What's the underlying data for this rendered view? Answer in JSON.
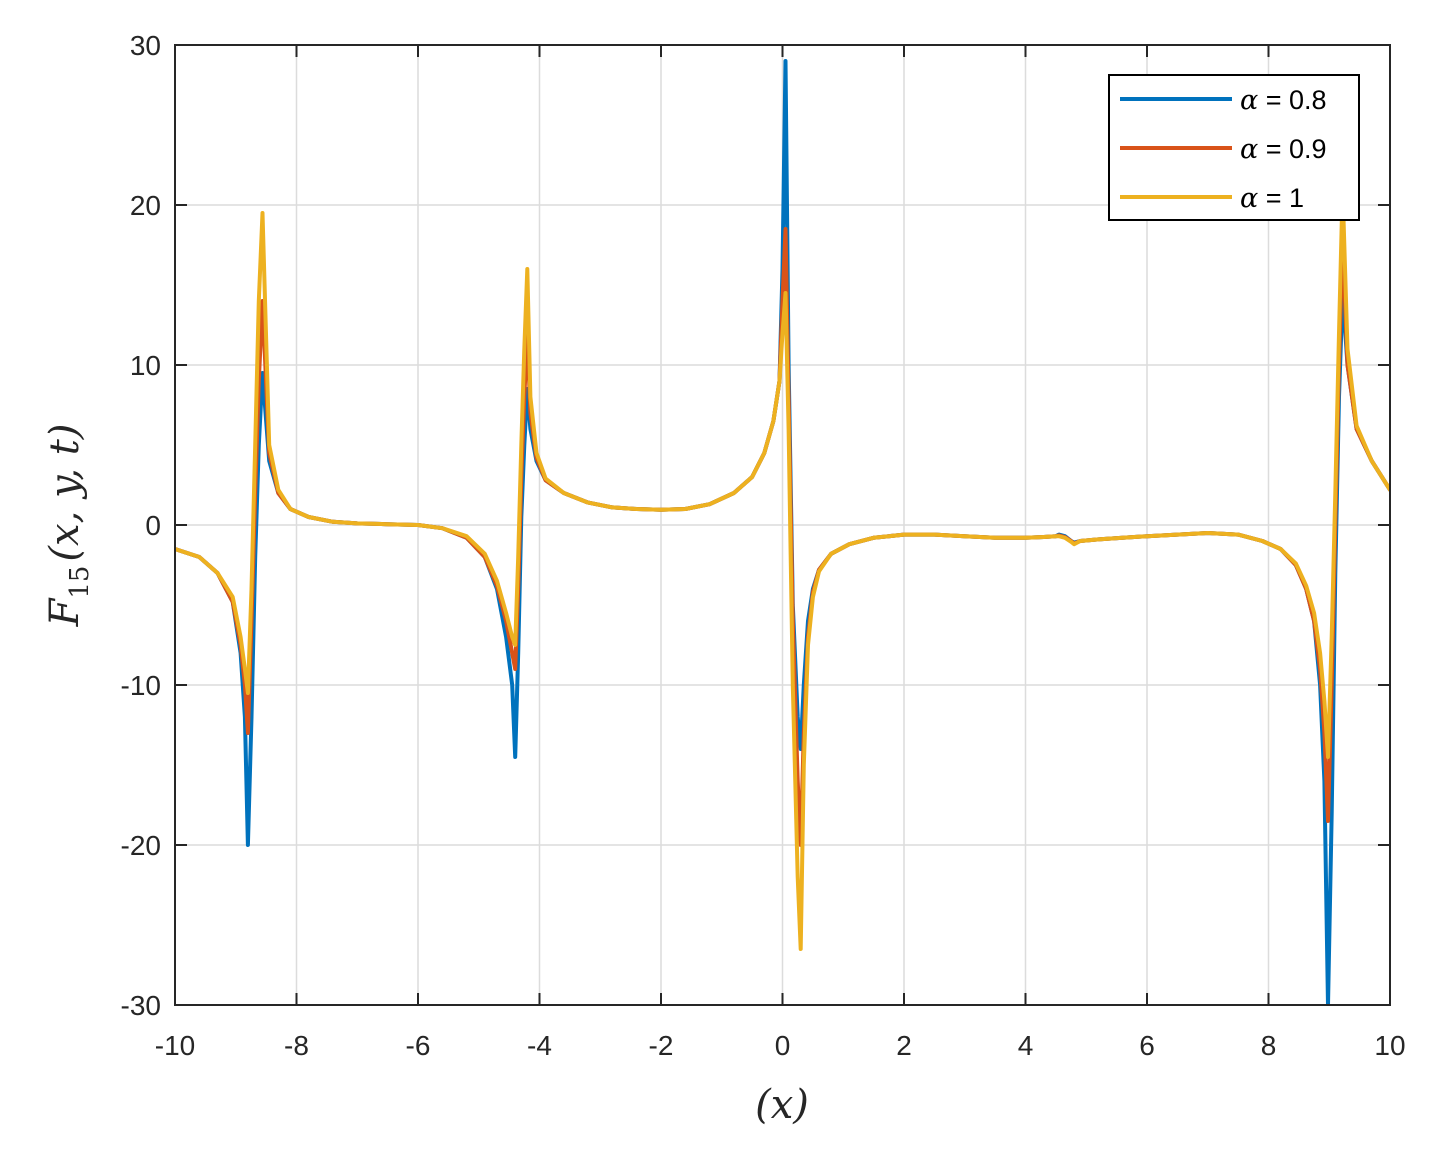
{
  "chart_data": {
    "type": "line",
    "title": "",
    "xlabel": "(x)",
    "ylabel_parts": {
      "main": "F",
      "sub": "15",
      "args": "(x, y, t)"
    },
    "xlim": [
      -10,
      10
    ],
    "ylim": [
      -30,
      30
    ],
    "xticks": [
      -10,
      -8,
      -6,
      -4,
      -2,
      0,
      2,
      4,
      6,
      8,
      10
    ],
    "yticks": [
      -30,
      -20,
      -10,
      0,
      10,
      20,
      30
    ],
    "xtick_labels": [
      "-10",
      "-8",
      "-6",
      "-4",
      "-2",
      "0",
      "2",
      "4",
      "6",
      "8",
      "10"
    ],
    "ytick_labels": [
      "-30",
      "-20",
      "-10",
      "0",
      "10",
      "20",
      "30"
    ],
    "grid": true,
    "legend_position": "top-right",
    "series": [
      {
        "name": "α = 0.8",
        "greek": "α",
        "value_text": " = 0.8",
        "color": "#0072BD",
        "x": [
          -10,
          -9.6,
          -9.3,
          -9.05,
          -8.92,
          -8.85,
          -8.8,
          -8.74,
          -8.68,
          -8.62,
          -8.56,
          -8.45,
          -8.3,
          -8.1,
          -7.8,
          -7.4,
          -7.0,
          -6.5,
          -6.0,
          -5.6,
          -5.2,
          -4.9,
          -4.7,
          -4.55,
          -4.45,
          -4.4,
          -4.35,
          -4.3,
          -4.25,
          -4.2,
          -4.15,
          -4.05,
          -3.9,
          -3.6,
          -3.2,
          -2.8,
          -2.4,
          -2.0,
          -1.6,
          -1.2,
          -0.8,
          -0.5,
          -0.3,
          -0.15,
          -0.05,
          0.0,
          0.05,
          0.1,
          0.17,
          0.25,
          0.3,
          0.35,
          0.42,
          0.5,
          0.6,
          0.8,
          1.1,
          1.5,
          2.0,
          2.5,
          3.0,
          3.5,
          4.0,
          4.3,
          4.5,
          4.55,
          4.65,
          4.75,
          4.8,
          4.9,
          5.2,
          5.6,
          6.0,
          6.5,
          7.0,
          7.5,
          7.9,
          8.2,
          8.45,
          8.62,
          8.75,
          8.85,
          8.92,
          8.98,
          9.04,
          9.1,
          9.16,
          9.22,
          9.3,
          9.45,
          9.7,
          10
        ],
        "y": [
          -1.5,
          -2.0,
          -3.0,
          -4.8,
          -8.0,
          -12.0,
          -20.0,
          -12.0,
          -2.0,
          5.0,
          9.5,
          4.0,
          2.0,
          1.0,
          0.5,
          0.2,
          0.1,
          0.05,
          0.0,
          -0.2,
          -0.8,
          -2.0,
          -4.0,
          -7.0,
          -10.0,
          -14.5,
          -8.0,
          0.5,
          5.0,
          8.5,
          6.0,
          4.0,
          2.8,
          2.0,
          1.4,
          1.1,
          1.0,
          0.95,
          1.0,
          1.3,
          2.0,
          3.0,
          4.5,
          6.5,
          9.0,
          16.0,
          29.0,
          10.0,
          -5.0,
          -12.0,
          -14.0,
          -10.0,
          -6.0,
          -4.0,
          -2.8,
          -1.8,
          -1.2,
          -0.8,
          -0.6,
          -0.6,
          -0.7,
          -0.8,
          -0.8,
          -0.75,
          -0.7,
          -0.6,
          -0.7,
          -1.0,
          -1.1,
          -1.0,
          -0.9,
          -0.8,
          -0.7,
          -0.6,
          -0.5,
          -0.6,
          -1.0,
          -1.5,
          -2.5,
          -4.0,
          -6.0,
          -10.0,
          -16.0,
          -30.0,
          -18.0,
          -3.0,
          8.0,
          14.5,
          10.0,
          6.0,
          4.0,
          2.2
        ]
      },
      {
        "name": "α = 0.9",
        "greek": "α",
        "value_text": " = 0.9",
        "color": "#D95319",
        "x": [
          -10,
          -9.6,
          -9.3,
          -9.05,
          -8.92,
          -8.85,
          -8.8,
          -8.74,
          -8.68,
          -8.62,
          -8.56,
          -8.45,
          -8.3,
          -8.1,
          -7.8,
          -7.4,
          -7.0,
          -6.5,
          -6.0,
          -5.6,
          -5.2,
          -4.9,
          -4.7,
          -4.55,
          -4.45,
          -4.4,
          -4.35,
          -4.3,
          -4.25,
          -4.2,
          -4.15,
          -4.05,
          -3.9,
          -3.6,
          -3.2,
          -2.8,
          -2.4,
          -2.0,
          -1.6,
          -1.2,
          -0.8,
          -0.5,
          -0.3,
          -0.15,
          -0.05,
          0.0,
          0.05,
          0.1,
          0.17,
          0.25,
          0.3,
          0.35,
          0.42,
          0.5,
          0.6,
          0.8,
          1.1,
          1.5,
          2.0,
          2.5,
          3.0,
          3.5,
          4.0,
          4.3,
          4.5,
          4.55,
          4.65,
          4.75,
          4.8,
          4.9,
          5.2,
          5.6,
          6.0,
          6.5,
          7.0,
          7.5,
          7.9,
          8.2,
          8.45,
          8.62,
          8.75,
          8.85,
          8.92,
          8.98,
          9.04,
          9.1,
          9.16,
          9.22,
          9.3,
          9.45,
          9.7,
          10
        ],
        "y": [
          -1.5,
          -2.0,
          -3.0,
          -4.8,
          -7.5,
          -10.0,
          -13.0,
          -6.0,
          2.0,
          9.0,
          14.0,
          4.5,
          2.0,
          1.0,
          0.5,
          0.2,
          0.1,
          0.05,
          0.0,
          -0.2,
          -0.8,
          -2.0,
          -3.8,
          -6.0,
          -8.0,
          -9.0,
          -4.0,
          3.0,
          8.0,
          12.0,
          7.0,
          4.2,
          2.8,
          2.0,
          1.4,
          1.1,
          1.0,
          0.95,
          1.0,
          1.3,
          2.0,
          3.0,
          4.5,
          6.5,
          9.0,
          14.0,
          18.5,
          8.0,
          -6.0,
          -16.0,
          -20.0,
          -13.0,
          -7.0,
          -4.2,
          -2.8,
          -1.8,
          -1.2,
          -0.8,
          -0.6,
          -0.6,
          -0.7,
          -0.8,
          -0.8,
          -0.75,
          -0.7,
          -0.65,
          -0.75,
          -1.0,
          -1.15,
          -1.0,
          -0.9,
          -0.8,
          -0.7,
          -0.6,
          -0.5,
          -0.6,
          -1.0,
          -1.5,
          -2.5,
          -4.0,
          -6.0,
          -9.0,
          -13.0,
          -18.5,
          -10.0,
          0.0,
          10.0,
          18.0,
          10.0,
          6.0,
          4.0,
          2.2
        ]
      },
      {
        "name": "α = 1",
        "greek": "α",
        "value_text": " = 1",
        "color": "#EDB120",
        "x": [
          -10,
          -9.6,
          -9.3,
          -9.05,
          -8.92,
          -8.85,
          -8.8,
          -8.74,
          -8.68,
          -8.62,
          -8.56,
          -8.45,
          -8.3,
          -8.1,
          -7.8,
          -7.4,
          -7.0,
          -6.5,
          -6.0,
          -5.6,
          -5.2,
          -4.9,
          -4.7,
          -4.55,
          -4.45,
          -4.4,
          -4.35,
          -4.3,
          -4.25,
          -4.2,
          -4.15,
          -4.05,
          -3.9,
          -3.6,
          -3.2,
          -2.8,
          -2.4,
          -2.0,
          -1.6,
          -1.2,
          -0.8,
          -0.5,
          -0.3,
          -0.15,
          -0.05,
          0.0,
          0.05,
          0.1,
          0.17,
          0.25,
          0.3,
          0.35,
          0.42,
          0.5,
          0.6,
          0.8,
          1.1,
          1.5,
          2.0,
          2.5,
          3.0,
          3.5,
          4.0,
          4.3,
          4.5,
          4.55,
          4.65,
          4.75,
          4.8,
          4.9,
          5.2,
          5.6,
          6.0,
          6.5,
          7.0,
          7.5,
          7.9,
          8.2,
          8.45,
          8.62,
          8.75,
          8.85,
          8.92,
          8.98,
          9.04,
          9.1,
          9.16,
          9.22,
          9.3,
          9.45,
          9.7,
          10
        ],
        "y": [
          -1.5,
          -2.0,
          -3.0,
          -4.5,
          -7.0,
          -9.0,
          -10.5,
          -4.0,
          5.0,
          14.0,
          19.5,
          5.0,
          2.2,
          1.0,
          0.5,
          0.2,
          0.1,
          0.05,
          0.0,
          -0.2,
          -0.7,
          -1.8,
          -3.5,
          -5.5,
          -7.0,
          -7.5,
          -2.0,
          5.0,
          11.0,
          16.0,
          8.0,
          4.5,
          2.9,
          2.0,
          1.4,
          1.1,
          1.0,
          0.95,
          1.0,
          1.3,
          2.0,
          3.0,
          4.5,
          6.5,
          9.0,
          12.0,
          14.5,
          6.0,
          -10.0,
          -22.0,
          -26.5,
          -15.0,
          -7.5,
          -4.5,
          -2.9,
          -1.8,
          -1.2,
          -0.8,
          -0.6,
          -0.6,
          -0.7,
          -0.8,
          -0.8,
          -0.75,
          -0.7,
          -0.7,
          -0.8,
          -1.05,
          -1.2,
          -1.0,
          -0.9,
          -0.8,
          -0.7,
          -0.6,
          -0.5,
          -0.6,
          -1.0,
          -1.5,
          -2.4,
          -3.8,
          -5.5,
          -8.0,
          -11.0,
          -14.5,
          -7.0,
          2.0,
          12.0,
          21.0,
          11.0,
          6.2,
          4.0,
          2.2
        ]
      }
    ]
  }
}
